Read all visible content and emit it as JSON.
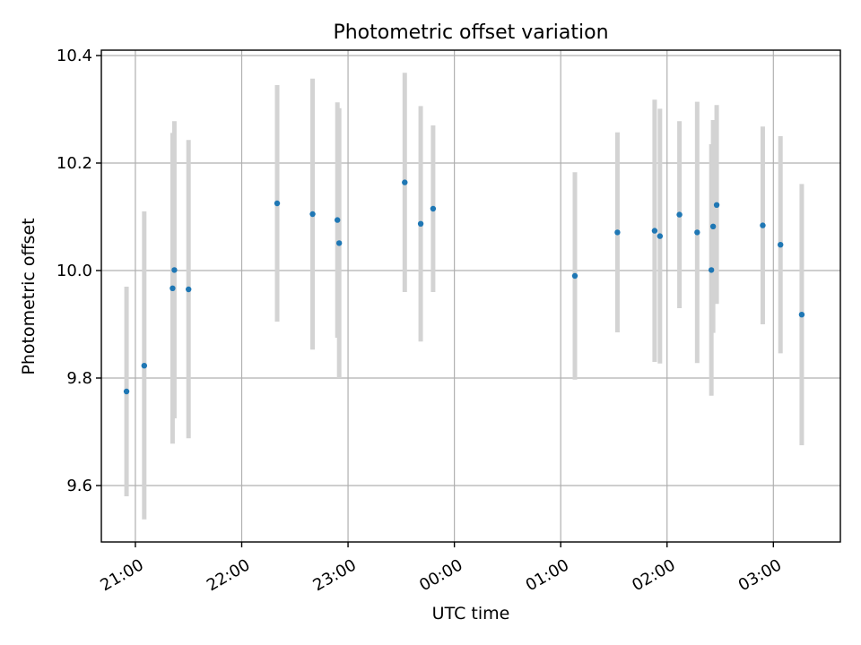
{
  "chart_data": {
    "type": "scatter",
    "title": "Photometric offset variation",
    "xlabel": "UTC time",
    "ylabel": "Photometric offset",
    "grid": true,
    "x_axis_kind": "time-hours",
    "xlim": [
      20.68,
      27.63
    ],
    "ylim": [
      9.495,
      10.41
    ],
    "yticks": [
      9.6,
      9.8,
      10.0,
      10.2,
      10.4
    ],
    "ytick_labels": [
      "9.6",
      "9.8",
      "10.0",
      "10.2",
      "10.4"
    ],
    "xticks": [
      21,
      22,
      23,
      24,
      25,
      26,
      27
    ],
    "xtick_labels": [
      "21:00",
      "22:00",
      "23:00",
      "00:00",
      "01:00",
      "02:00",
      "03:00"
    ],
    "series": [
      {
        "color": "#1f77b4",
        "error_color": "#d3d3d3",
        "points": [
          {
            "t": "20:55",
            "y": 9.775,
            "lo": 9.58,
            "hi": 9.97
          },
          {
            "t": "21:05",
            "y": 9.823,
            "lo": 9.537,
            "hi": 10.11
          },
          {
            "t": "21:21",
            "y": 9.967,
            "lo": 9.678,
            "hi": 10.256
          },
          {
            "t": "21:22",
            "y": 10.001,
            "lo": 9.725,
            "hi": 10.278
          },
          {
            "t": "21:30",
            "y": 9.965,
            "lo": 9.688,
            "hi": 10.243
          },
          {
            "t": "22:20",
            "y": 10.125,
            "lo": 9.905,
            "hi": 10.345
          },
          {
            "t": "22:40",
            "y": 10.105,
            "lo": 9.853,
            "hi": 10.357
          },
          {
            "t": "22:54",
            "y": 10.094,
            "lo": 9.875,
            "hi": 10.313
          },
          {
            "t": "22:55",
            "y": 10.051,
            "lo": 9.8,
            "hi": 10.302
          },
          {
            "t": "23:32",
            "y": 10.164,
            "lo": 9.96,
            "hi": 10.368
          },
          {
            "t": "23:41",
            "y": 10.087,
            "lo": 9.868,
            "hi": 10.306
          },
          {
            "t": "23:48",
            "y": 10.115,
            "lo": 9.96,
            "hi": 10.27
          },
          {
            "t": "01:08",
            "y": 9.99,
            "lo": 9.797,
            "hi": 10.183
          },
          {
            "t": "01:32",
            "y": 10.071,
            "lo": 9.885,
            "hi": 10.257
          },
          {
            "t": "01:53",
            "y": 10.074,
            "lo": 9.83,
            "hi": 10.318
          },
          {
            "t": "01:56",
            "y": 10.064,
            "lo": 9.827,
            "hi": 10.301
          },
          {
            "t": "02:07",
            "y": 10.104,
            "lo": 9.93,
            "hi": 10.278
          },
          {
            "t": "02:17",
            "y": 10.071,
            "lo": 9.828,
            "hi": 10.314
          },
          {
            "t": "02:25",
            "y": 10.001,
            "lo": 9.767,
            "hi": 10.235
          },
          {
            "t": "02:26",
            "y": 10.082,
            "lo": 9.884,
            "hi": 10.28
          },
          {
            "t": "02:28",
            "y": 10.122,
            "lo": 9.938,
            "hi": 10.308
          },
          {
            "t": "02:54",
            "y": 10.084,
            "lo": 9.9,
            "hi": 10.268
          },
          {
            "t": "03:04",
            "y": 10.048,
            "lo": 9.846,
            "hi": 10.25
          },
          {
            "t": "03:16",
            "y": 9.918,
            "lo": 9.675,
            "hi": 10.161
          }
        ]
      }
    ]
  }
}
